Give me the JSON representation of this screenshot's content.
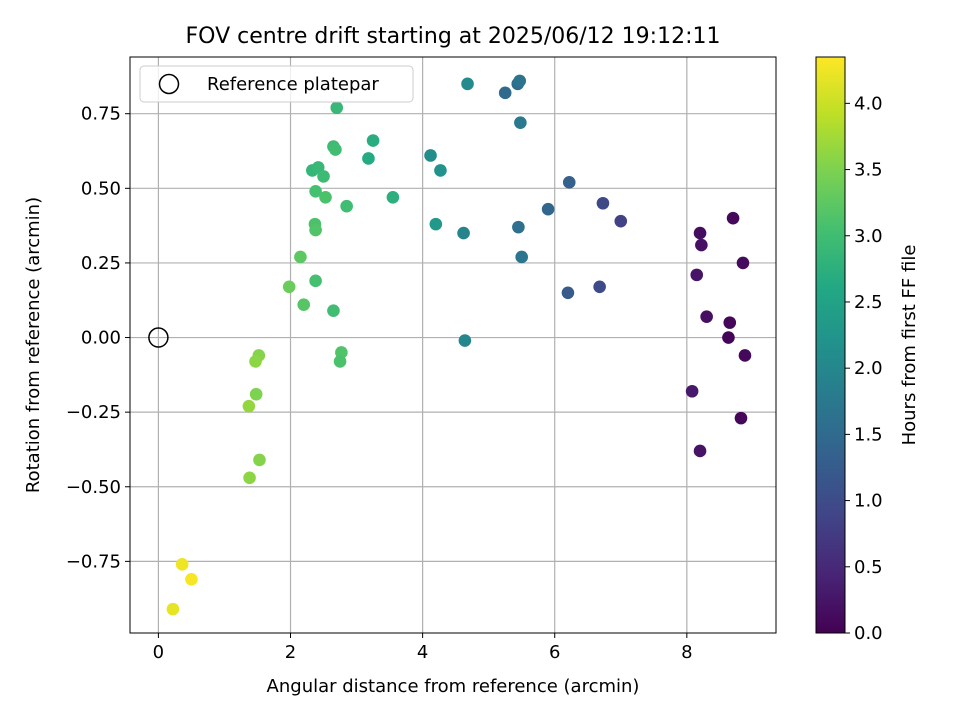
{
  "chart_data": {
    "type": "scatter",
    "title": "FOV centre drift starting at 2025/06/12 19:12:11",
    "xlabel": "Angular distance from reference (arcmin)",
    "ylabel": "Rotation from reference (arcmin)",
    "xlim": [
      -0.43,
      9.35
    ],
    "ylim": [
      -0.99,
      0.94
    ],
    "xticks": [
      0,
      2,
      4,
      6,
      8
    ],
    "xtick_labels": [
      "0",
      "2",
      "4",
      "6",
      "8"
    ],
    "yticks": [
      -0.75,
      -0.5,
      -0.25,
      0.0,
      0.25,
      0.5,
      0.75
    ],
    "ytick_labels": [
      "−0.75",
      "−0.50",
      "−0.25",
      "0.00",
      "0.25",
      "0.50",
      "0.75"
    ],
    "grid": true,
    "legend": {
      "position": "top-left",
      "entries": [
        "Reference platepar"
      ]
    },
    "reference_point": {
      "x": 0,
      "y": 0,
      "marker": "open-circle",
      "label": "Reference platepar"
    },
    "colorbar": {
      "label": "Hours from first FF file",
      "colormap": "viridis",
      "range": [
        0.0,
        4.35
      ],
      "ticks": [
        0.0,
        0.5,
        1.0,
        1.5,
        2.0,
        2.5,
        3.0,
        3.5,
        4.0
      ],
      "tick_labels": [
        "0.0",
        "0.5",
        "1.0",
        "1.5",
        "2.0",
        "2.5",
        "3.0",
        "3.5",
        "4.0"
      ]
    },
    "points": [
      {
        "x": 8.2,
        "y": 0.35,
        "c": 0.15
      },
      {
        "x": 8.22,
        "y": 0.31,
        "c": 0.2
      },
      {
        "x": 8.7,
        "y": 0.4,
        "c": 0.1
      },
      {
        "x": 8.85,
        "y": 0.25,
        "c": 0.12
      },
      {
        "x": 8.15,
        "y": 0.21,
        "c": 0.25
      },
      {
        "x": 8.3,
        "y": 0.07,
        "c": 0.18
      },
      {
        "x": 8.65,
        "y": 0.05,
        "c": 0.08
      },
      {
        "x": 8.63,
        "y": 0.0,
        "c": 0.05
      },
      {
        "x": 8.88,
        "y": -0.06,
        "c": 0.1
      },
      {
        "x": 8.08,
        "y": -0.18,
        "c": 0.3
      },
      {
        "x": 8.82,
        "y": -0.27,
        "c": 0.08
      },
      {
        "x": 8.2,
        "y": -0.38,
        "c": 0.22
      },
      {
        "x": 7.0,
        "y": 0.39,
        "c": 0.85
      },
      {
        "x": 6.73,
        "y": 0.45,
        "c": 0.95
      },
      {
        "x": 6.68,
        "y": 0.17,
        "c": 1.0
      },
      {
        "x": 6.2,
        "y": 0.15,
        "c": 1.25
      },
      {
        "x": 6.22,
        "y": 0.52,
        "c": 1.35
      },
      {
        "x": 5.9,
        "y": 0.43,
        "c": 1.45
      },
      {
        "x": 5.5,
        "y": 0.27,
        "c": 1.7
      },
      {
        "x": 5.45,
        "y": 0.37,
        "c": 1.6
      },
      {
        "x": 5.48,
        "y": 0.72,
        "c": 1.75
      },
      {
        "x": 5.25,
        "y": 0.82,
        "c": 1.5
      },
      {
        "x": 5.44,
        "y": 0.85,
        "c": 1.55
      },
      {
        "x": 5.47,
        "y": 0.86,
        "c": 1.65
      },
      {
        "x": 4.68,
        "y": 0.85,
        "c": 2.05
      },
      {
        "x": 4.12,
        "y": 0.61,
        "c": 2.1
      },
      {
        "x": 4.27,
        "y": 0.56,
        "c": 2.2
      },
      {
        "x": 4.2,
        "y": 0.38,
        "c": 2.3
      },
      {
        "x": 4.62,
        "y": 0.35,
        "c": 1.95
      },
      {
        "x": 4.64,
        "y": -0.01,
        "c": 2.0
      },
      {
        "x": 3.18,
        "y": 0.6,
        "c": 2.65
      },
      {
        "x": 3.25,
        "y": 0.66,
        "c": 2.7
      },
      {
        "x": 3.55,
        "y": 0.47,
        "c": 2.75
      },
      {
        "x": 2.7,
        "y": 0.77,
        "c": 2.9
      },
      {
        "x": 2.65,
        "y": 0.64,
        "c": 2.95
      },
      {
        "x": 2.68,
        "y": 0.63,
        "c": 3.0
      },
      {
        "x": 2.33,
        "y": 0.56,
        "c": 2.85
      },
      {
        "x": 2.42,
        "y": 0.57,
        "c": 2.9
      },
      {
        "x": 2.5,
        "y": 0.54,
        "c": 2.95
      },
      {
        "x": 2.38,
        "y": 0.49,
        "c": 3.05
      },
      {
        "x": 2.53,
        "y": 0.47,
        "c": 3.1
      },
      {
        "x": 2.85,
        "y": 0.44,
        "c": 3.0
      },
      {
        "x": 2.37,
        "y": 0.38,
        "c": 3.1
      },
      {
        "x": 2.38,
        "y": 0.36,
        "c": 3.15
      },
      {
        "x": 2.15,
        "y": 0.27,
        "c": 3.25
      },
      {
        "x": 2.38,
        "y": 0.19,
        "c": 3.05
      },
      {
        "x": 1.98,
        "y": 0.17,
        "c": 3.35
      },
      {
        "x": 2.2,
        "y": 0.11,
        "c": 3.2
      },
      {
        "x": 2.65,
        "y": 0.09,
        "c": 3.0
      },
      {
        "x": 2.77,
        "y": -0.05,
        "c": 3.15
      },
      {
        "x": 2.75,
        "y": -0.08,
        "c": 3.1
      },
      {
        "x": 1.52,
        "y": -0.06,
        "c": 3.55
      },
      {
        "x": 1.47,
        "y": -0.08,
        "c": 3.6
      },
      {
        "x": 1.48,
        "y": -0.19,
        "c": 3.5
      },
      {
        "x": 1.37,
        "y": -0.23,
        "c": 3.65
      },
      {
        "x": 1.53,
        "y": -0.41,
        "c": 3.55
      },
      {
        "x": 1.38,
        "y": -0.47,
        "c": 3.6
      },
      {
        "x": 0.36,
        "y": -0.76,
        "c": 4.25
      },
      {
        "x": 0.5,
        "y": -0.81,
        "c": 4.3
      },
      {
        "x": 0.22,
        "y": -0.91,
        "c": 4.2
      }
    ]
  }
}
